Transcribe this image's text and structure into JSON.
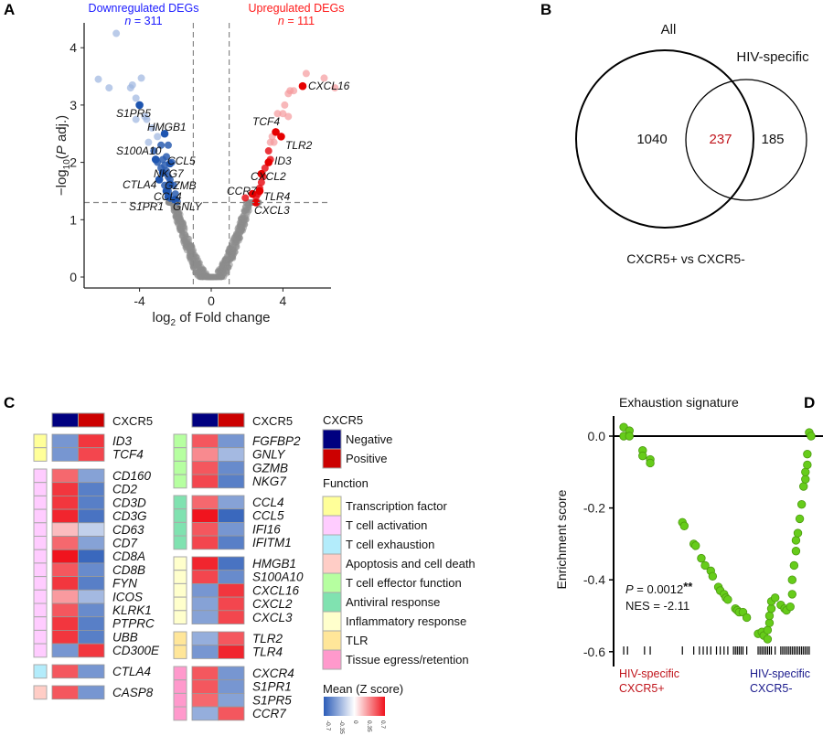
{
  "panels": {
    "a": "A",
    "b": "B",
    "c": "C",
    "d": "D"
  },
  "chart_data": [
    {
      "type": "scatter",
      "panel": "A",
      "xlabel_main": "log",
      "xlabel_sub": "2",
      "xlabel_rest": " of Fold change",
      "ylabel_pre": "−log",
      "ylabel_sub": "10",
      "ylabel_mid": "(",
      "ylabel_p": "P",
      "ylabel_post": " adj.)",
      "xlim": [
        -6.8,
        7.2
      ],
      "ylim": [
        -0.1,
        4.4
      ],
      "xticks": [
        "-4",
        "0",
        "4"
      ],
      "xtick_values": [
        -4,
        0,
        4
      ],
      "yticks": [
        "0",
        "1",
        "2",
        "3",
        "4"
      ],
      "ytick_values": [
        0,
        1,
        2,
        3,
        4
      ],
      "fc_thresholds": [
        -1,
        1
      ],
      "p_threshold": 1.3,
      "down_title": "Downregulated DEGs",
      "down_n_label": "n",
      "down_n_value": " = 311",
      "up_title": "Upregulated DEGs",
      "up_n_label": "n",
      "up_n_value": " = 111",
      "colors": {
        "down": "#2a5db0",
        "down_light": "#9db5df",
        "up": "#e8141b",
        "up_light": "#f59a9c",
        "ns": "#8c8c8c"
      },
      "down_points": [
        [
          -5.3,
          4.25
        ],
        [
          -6.3,
          3.45
        ],
        [
          -5.7,
          3.3
        ],
        [
          -4.5,
          3.3
        ],
        [
          -4.4,
          3.35
        ],
        [
          -3.9,
          3.47
        ],
        [
          -4.2,
          3.12
        ],
        [
          -3.7,
          2.8
        ],
        [
          -3.6,
          2.75
        ],
        [
          -4.2,
          2.75
        ],
        [
          -3.3,
          2.6
        ],
        [
          -3.0,
          2.45
        ],
        [
          -3.5,
          2.35
        ],
        [
          -2.8,
          2.3
        ],
        [
          -2.4,
          2.3
        ],
        [
          -3.2,
          2.2
        ],
        [
          -2.5,
          2.1
        ],
        [
          -3.0,
          2.0
        ],
        [
          -2.2,
          2.0
        ],
        [
          -2.8,
          1.9
        ],
        [
          -2.5,
          1.85
        ],
        [
          -2.3,
          1.7
        ],
        [
          -2.6,
          1.6
        ],
        [
          -2.1,
          1.6
        ],
        [
          -2.4,
          1.5
        ],
        [
          -2.0,
          1.45
        ],
        [
          -2.2,
          1.35
        ],
        [
          -1.9,
          1.32
        ],
        [
          -2.7,
          2.05
        ],
        [
          -2.6,
          1.95
        ],
        [
          -2.4,
          1.75
        ]
      ],
      "up_points": [
        [
          5.3,
          3.55
        ],
        [
          6.3,
          3.47
        ],
        [
          6.9,
          3.3
        ],
        [
          4.6,
          3.25
        ],
        [
          4.4,
          3.25
        ],
        [
          4.3,
          3.2
        ],
        [
          4.1,
          3.0
        ],
        [
          4.0,
          2.85
        ],
        [
          3.7,
          2.85
        ],
        [
          4.3,
          2.8
        ],
        [
          3.4,
          2.45
        ],
        [
          3.3,
          2.35
        ],
        [
          3.5,
          2.35
        ],
        [
          3.2,
          2.2
        ],
        [
          3.3,
          2.05
        ],
        [
          2.9,
          1.75
        ],
        [
          2.8,
          1.65
        ],
        [
          2.7,
          1.55
        ],
        [
          2.6,
          1.45
        ],
        [
          2.5,
          1.4
        ],
        [
          1.9,
          1.38
        ],
        [
          3.0,
          1.9
        ]
      ],
      "labeled_genes": [
        {
          "gene": "S1PR5",
          "x": -4.0,
          "y": 3.0
        },
        {
          "gene": "HMGB1",
          "x": -2.6,
          "y": 2.5
        },
        {
          "gene": "S100A10",
          "x": -3.1,
          "y": 2.05
        },
        {
          "gene": "CCL5",
          "x": -2.3,
          "y": 1.98
        },
        {
          "gene": "NKG7",
          "x": -2.7,
          "y": 1.82
        },
        {
          "gene": "CTLA4",
          "x": -2.9,
          "y": 1.7
        },
        {
          "gene": "GZMB",
          "x": -2.3,
          "y": 1.62
        },
        {
          "gene": "CCL4",
          "x": -2.5,
          "y": 1.5
        },
        {
          "gene": "S1PR1",
          "x": -2.4,
          "y": 1.4
        },
        {
          "gene": "GNLY",
          "x": -2.0,
          "y": 1.35
        },
        {
          "gene": "CXCL16",
          "x": 5.1,
          "y": 3.33
        },
        {
          "gene": "TCF4",
          "x": 3.6,
          "y": 2.53
        },
        {
          "gene": "TLR2",
          "x": 3.9,
          "y": 2.45
        },
        {
          "gene": "ID3",
          "x": 3.2,
          "y": 2.0
        },
        {
          "gene": "CXCL2",
          "x": 2.8,
          "y": 1.8
        },
        {
          "gene": "CCR7",
          "x": 2.3,
          "y": 1.45
        },
        {
          "gene": "TLR4",
          "x": 2.7,
          "y": 1.5
        },
        {
          "gene": "CXCL3",
          "x": 2.5,
          "y": 1.3
        }
      ]
    },
    {
      "type": "venn",
      "panel": "B",
      "sets": [
        "All",
        "HIV-specific"
      ],
      "only_all": "1040",
      "intersection": "237",
      "only_hiv": "185",
      "caption": "CXCR5+ vs CXCR5-",
      "intersection_color": "#c0141b"
    },
    {
      "type": "heatmap",
      "panel": "C",
      "column_annotation_label": "CXCR5",
      "columns": [
        "Negative",
        "Positive"
      ],
      "column_colors": [
        "#000080",
        "#cc0000"
      ],
      "scale": {
        "title": "Mean (Z score)",
        "min": -0.7,
        "max": 0.7,
        "ticks": [
          "-0.7",
          "-0.35",
          "0",
          "0.35",
          "0.7"
        ],
        "low": "#2b5cb8",
        "mid": "#ffffff",
        "high": "#f0141e"
      },
      "legend_cxcr5_title": "CXCR5",
      "legend_function_title": "Function",
      "functions": [
        {
          "name": "Transcription factor",
          "color": "#ffff99"
        },
        {
          "name": "T cell activation",
          "color": "#ffccff"
        },
        {
          "name": "T cell exhaustion",
          "color": "#b3ecfb"
        },
        {
          "name": "Apoptosis and cell death",
          "color": "#ffcdc6"
        },
        {
          "name": "T cell effector function",
          "color": "#b6ffa0"
        },
        {
          "name": "Antiviral response",
          "color": "#80e2b0"
        },
        {
          "name": "Inflammatory response",
          "color": "#ffffcc"
        },
        {
          "name": "TLR",
          "color": "#ffe699"
        },
        {
          "name": "Tissue egress/retention",
          "color": "#ff99cc"
        }
      ],
      "blocks": [
        {
          "col": 0,
          "function": 0,
          "rows": [
            [
              "ID3",
              -0.45,
              0.6
            ],
            [
              "TCF4",
              -0.45,
              0.55
            ]
          ]
        },
        {
          "col": 0,
          "function": 1,
          "rows": [
            [
              "CD160",
              0.45,
              -0.4
            ],
            [
              "CD2",
              0.6,
              -0.55
            ],
            [
              "CD3D",
              0.6,
              -0.55
            ],
            [
              "CD3G",
              0.65,
              -0.6
            ],
            [
              "CD63",
              0.2,
              -0.2
            ],
            [
              "CD7",
              0.45,
              -0.4
            ],
            [
              "CD8A",
              0.7,
              -0.65
            ],
            [
              "CD8B",
              0.5,
              -0.5
            ],
            [
              "FYN",
              0.6,
              -0.55
            ],
            [
              "ICOS",
              0.3,
              -0.3
            ],
            [
              "KLRK1",
              0.5,
              -0.5
            ],
            [
              "PTPRC",
              0.6,
              -0.55
            ],
            [
              "UBB",
              0.6,
              -0.55
            ],
            [
              "CD300E",
              -0.45,
              0.6
            ]
          ]
        },
        {
          "col": 0,
          "function": 2,
          "rows": [
            [
              "CTLA4",
              0.5,
              -0.45
            ]
          ]
        },
        {
          "col": 0,
          "function": 3,
          "rows": [
            [
              "CASP8",
              0.5,
              -0.45
            ]
          ]
        },
        {
          "col": 1,
          "function": 4,
          "rows": [
            [
              "FGFBP2",
              0.5,
              -0.45
            ],
            [
              "GNLY",
              0.35,
              -0.3
            ],
            [
              "GZMB",
              0.5,
              -0.5
            ],
            [
              "NKG7",
              0.55,
              -0.55
            ]
          ]
        },
        {
          "col": 1,
          "function": 5,
          "rows": [
            [
              "CCL4",
              0.45,
              -0.4
            ],
            [
              "CCL5",
              0.7,
              -0.65
            ],
            [
              "IFI16",
              0.5,
              -0.45
            ],
            [
              "IFITM1",
              0.55,
              -0.55
            ]
          ]
        },
        {
          "col": 1,
          "function": 6,
          "rows": [
            [
              "HMGB1",
              0.65,
              -0.6
            ],
            [
              "S100A10",
              0.55,
              -0.5
            ],
            [
              "CXCL16",
              -0.45,
              0.6
            ],
            [
              "CXCL2",
              -0.4,
              0.55
            ],
            [
              "CXCL3",
              -0.4,
              0.55
            ]
          ]
        },
        {
          "col": 1,
          "function": 7,
          "rows": [
            [
              "TLR2",
              -0.35,
              0.5
            ],
            [
              "TLR4",
              -0.45,
              0.65
            ]
          ]
        },
        {
          "col": 1,
          "function": 8,
          "rows": [
            [
              "CXCR4",
              0.5,
              -0.45
            ],
            [
              "S1PR1",
              0.5,
              -0.45
            ],
            [
              "S1PR5",
              0.45,
              -0.4
            ],
            [
              "CCR7",
              -0.35,
              0.5
            ]
          ]
        }
      ]
    },
    {
      "type": "scatter",
      "panel": "D",
      "title": "Exhaustion signature",
      "ylabel": "Enrichment score",
      "ylim": [
        -0.63,
        0.06
      ],
      "yticks": [
        "0.0",
        "-0.2",
        "-0.4",
        "-0.6"
      ],
      "ytick_values": [
        0,
        -0.2,
        -0.4,
        -0.6
      ],
      "point_color": "#66cc1a",
      "stat_p_label": "P",
      "stat_p_value": " = 0.0012",
      "stat_stars": "**",
      "stat_nes": "NES = -2.11",
      "left_group": [
        "HIV-specific",
        "CXCR5+"
      ],
      "right_group": [
        "HIV-specific",
        "CXCR5-"
      ],
      "left_color": "#c0141b",
      "right_color": "#1a1a8c",
      "rank_points": [
        [
          1,
          0.0
        ],
        [
          1,
          0.025
        ],
        [
          4,
          0.015
        ],
        [
          4,
          0.0
        ],
        [
          11,
          -0.04
        ],
        [
          11,
          -0.055
        ],
        [
          15,
          -0.065
        ],
        [
          15,
          -0.075
        ],
        [
          32,
          -0.24
        ],
        [
          33,
          -0.25
        ],
        [
          38,
          -0.3
        ],
        [
          39,
          -0.305
        ],
        [
          42,
          -0.34
        ],
        [
          44,
          -0.36
        ],
        [
          47,
          -0.375
        ],
        [
          48,
          -0.39
        ],
        [
          51,
          -0.42
        ],
        [
          52,
          -0.43
        ],
        [
          54,
          -0.44
        ],
        [
          55,
          -0.45
        ],
        [
          56,
          -0.455
        ],
        [
          60,
          -0.48
        ],
        [
          61,
          -0.485
        ],
        [
          62,
          -0.49
        ],
        [
          64,
          -0.49
        ],
        [
          66,
          -0.505
        ],
        [
          72,
          -0.55
        ],
        [
          74,
          -0.545
        ],
        [
          75,
          -0.555
        ],
        [
          77,
          -0.565
        ],
        [
          77,
          -0.54
        ],
        [
          78,
          -0.52
        ],
        [
          78,
          -0.5
        ],
        [
          79,
          -0.48
        ],
        [
          79,
          -0.46
        ],
        [
          81,
          -0.45
        ],
        [
          84,
          -0.47
        ],
        [
          86,
          -0.48
        ],
        [
          87,
          -0.485
        ],
        [
          89,
          -0.475
        ],
        [
          90,
          -0.44
        ],
        [
          90,
          -0.4
        ],
        [
          91,
          -0.36
        ],
        [
          92,
          -0.32
        ],
        [
          92,
          -0.29
        ],
        [
          93,
          -0.27
        ],
        [
          94,
          -0.23
        ],
        [
          95,
          -0.19
        ],
        [
          96,
          -0.14
        ],
        [
          97,
          -0.12
        ],
        [
          97,
          -0.1
        ],
        [
          98,
          -0.08
        ],
        [
          98,
          -0.05
        ],
        [
          99,
          0.01
        ],
        [
          100,
          0.0
        ]
      ],
      "hit_ranks": [
        1,
        3,
        12,
        15,
        32,
        38,
        41,
        43,
        45,
        47,
        50,
        52,
        54,
        56,
        59,
        60,
        61,
        62,
        63,
        64,
        66,
        72,
        73,
        74,
        75,
        76,
        77,
        78,
        79,
        81,
        84,
        85,
        86,
        87,
        88,
        89,
        90,
        91,
        92,
        93,
        94,
        95,
        96,
        97,
        98,
        99
      ]
    }
  ]
}
